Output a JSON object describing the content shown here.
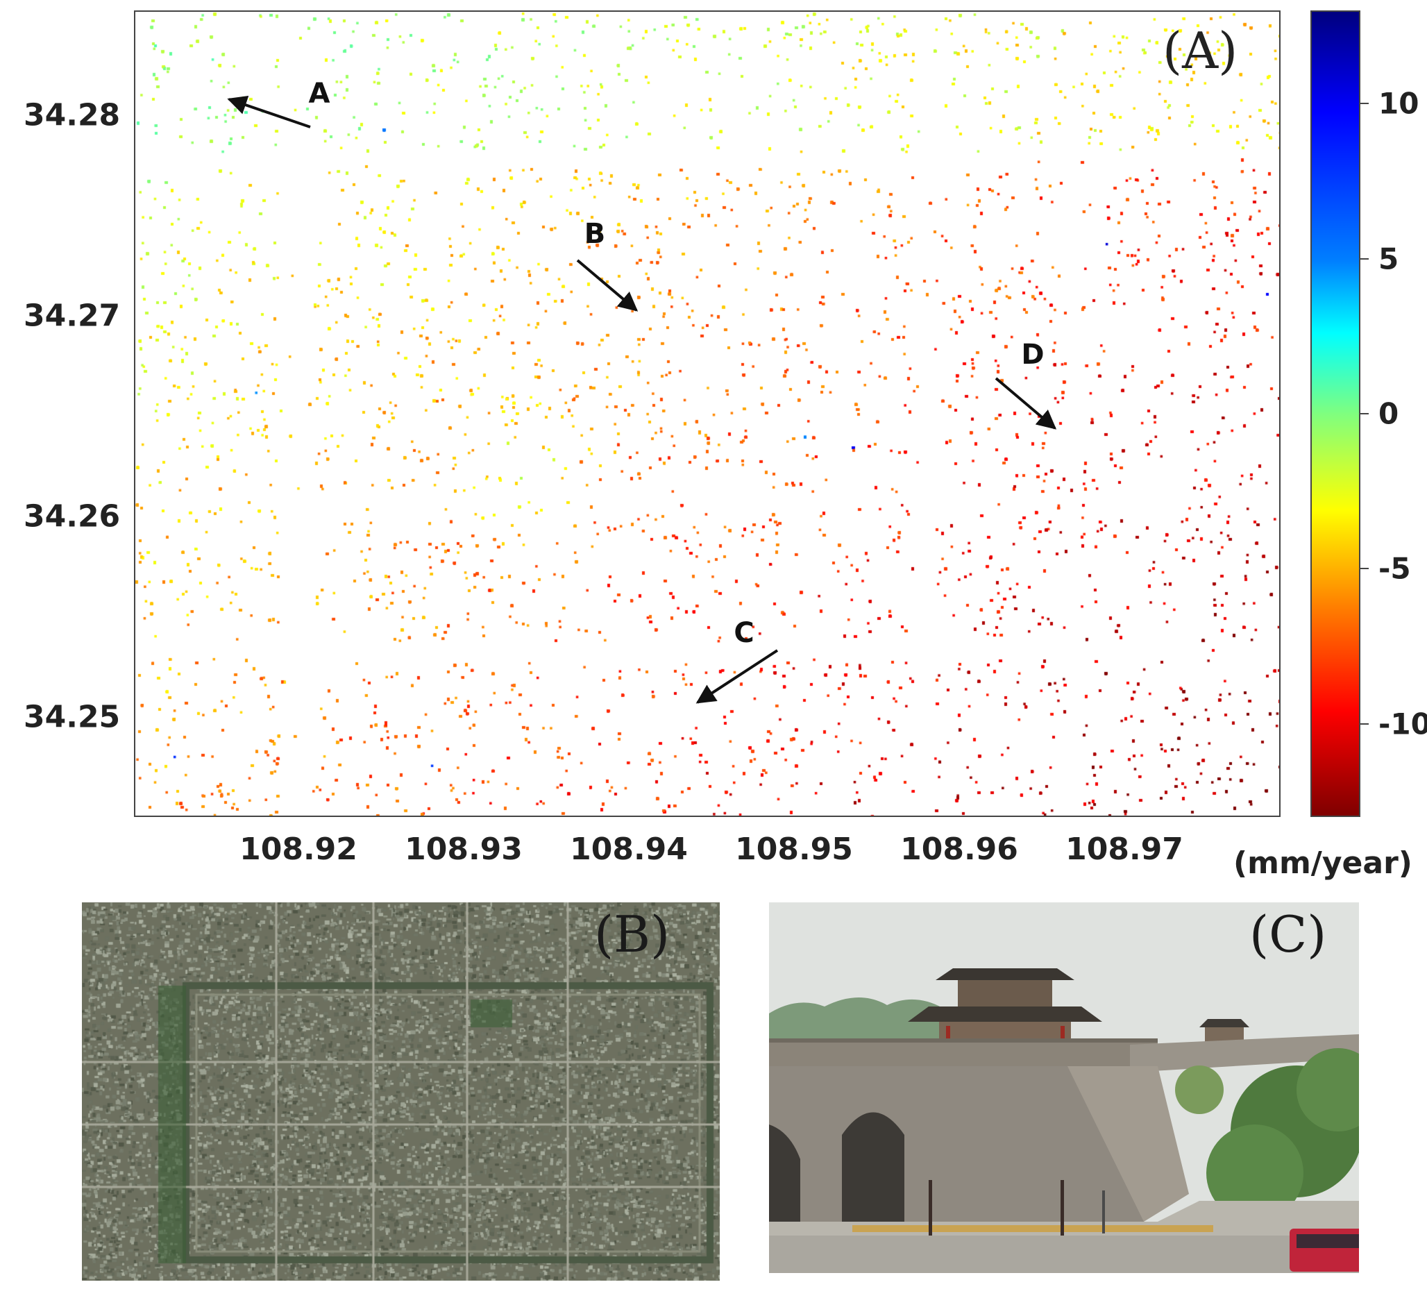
{
  "panels": {
    "a_label": "(A)",
    "b_label": "(B)",
    "c_label": "(C)"
  },
  "map": {
    "x_ticks": [
      "108.92",
      "108.93",
      "108.94",
      "108.95",
      "108.96",
      "108.97"
    ],
    "y_ticks": [
      "34.28",
      "34.27",
      "34.26",
      "34.25"
    ],
    "lon_range": [
      108.91,
      108.98
    ],
    "lat_range": [
      34.2455,
      34.2855
    ],
    "annotations": [
      {
        "label": "A",
        "lon": 108.9163,
        "lat": 34.2808
      },
      {
        "label": "B",
        "lon": 108.9405,
        "lat": 34.27
      },
      {
        "label": "C",
        "lon": 108.9438,
        "lat": 34.2505
      },
      {
        "label": "D",
        "lon": 108.9663,
        "lat": 34.2636
      }
    ]
  },
  "colorbar": {
    "ticks": [
      "10",
      "5",
      "0",
      "-5",
      "-10"
    ],
    "tick_values": [
      10,
      5,
      0,
      -5,
      -10
    ],
    "range": [
      -13,
      13
    ],
    "unit": "(mm/year)"
  },
  "colors": {
    "jet_low": "#7f0000",
    "jet_mid": "#7fff7f",
    "jet_high": "#00007f",
    "arrow": "#111111"
  }
}
